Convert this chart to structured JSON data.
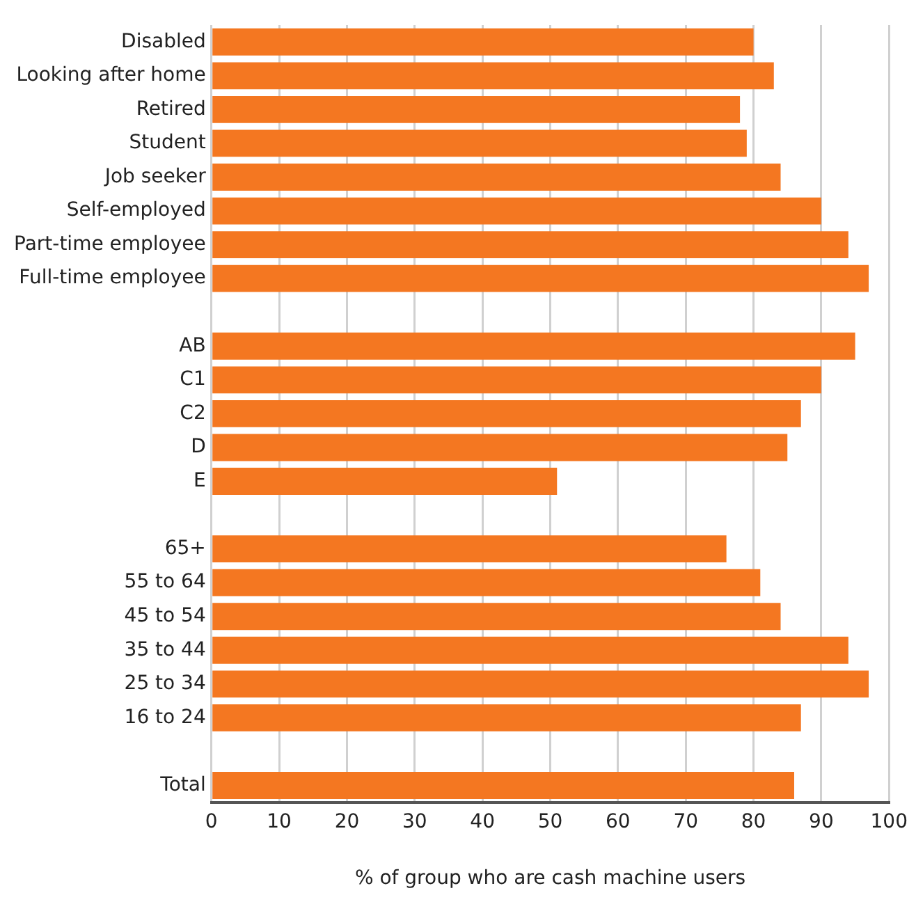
{
  "chart_data": {
    "type": "bar",
    "orientation": "horizontal",
    "xlabel": "% of group who are cash machine users",
    "categories": [
      "Disabled",
      "Looking after home",
      "Retired",
      "Student",
      "Job seeker",
      "Self-employed",
      "Part-time employee",
      "Full-time employee",
      null,
      "AB",
      "C1",
      "C2",
      "D",
      "E",
      null,
      "65+",
      "55 to 64",
      "45 to 54",
      "35 to 44",
      "25 to 34",
      "16 to 24",
      null,
      "Total"
    ],
    "values": [
      80,
      83,
      78,
      79,
      84,
      90,
      94,
      97,
      null,
      95,
      90,
      87,
      85,
      51,
      null,
      76,
      81,
      84,
      94,
      97,
      87,
      null,
      86
    ],
    "color": "#f47721",
    "xlim": [
      0,
      100
    ],
    "xticks": [
      0,
      10,
      20,
      30,
      40,
      50,
      60,
      70,
      80,
      90,
      100
    ],
    "grid": "x",
    "legend": false
  }
}
